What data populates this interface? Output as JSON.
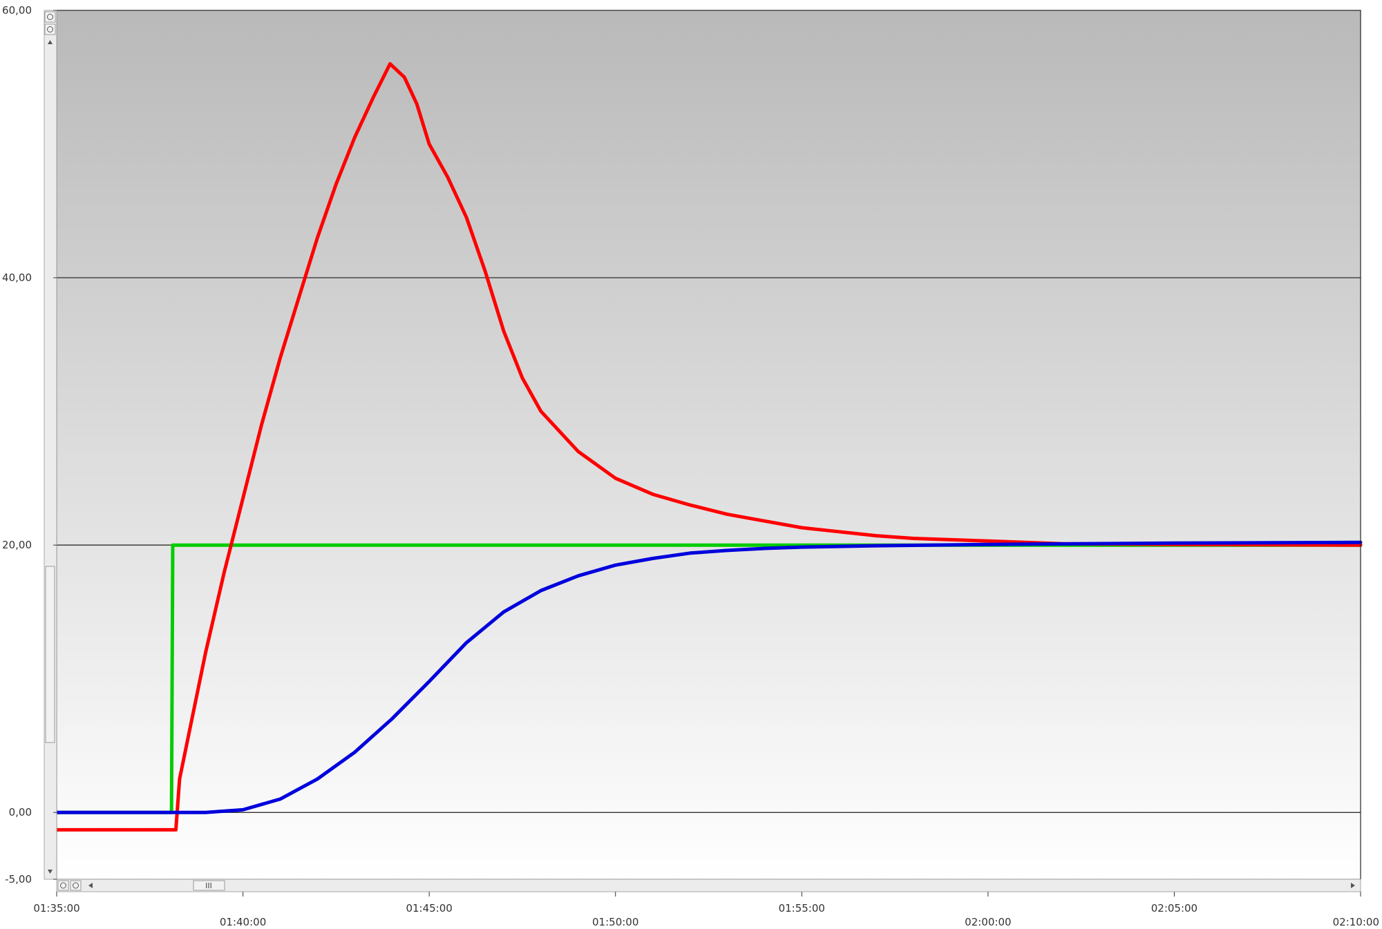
{
  "chart_data": {
    "type": "line",
    "title": "",
    "xlabel": "",
    "ylabel": "",
    "ylim": [
      -5,
      60
    ],
    "xlim_minutes": [
      0,
      35
    ],
    "y_ticks": [
      {
        "value": 60,
        "label": "60,00"
      },
      {
        "value": 40,
        "label": "40,00"
      },
      {
        "value": 20,
        "label": "20,00"
      },
      {
        "value": 0,
        "label": "0,00"
      },
      {
        "value": -5,
        "label": "-5,00"
      }
    ],
    "x_ticks": [
      {
        "value": "01:35:00",
        "label": "01:35:00"
      },
      {
        "value": "01:40:00",
        "label": "01:40:00"
      },
      {
        "value": "01:45:00",
        "label": "01:45:00"
      },
      {
        "value": "01:50:00",
        "label": "01:50:00"
      },
      {
        "value": "01:55:00",
        "label": "01:55:00"
      },
      {
        "value": "02:00:00",
        "label": "02:00:00"
      },
      {
        "value": "02:05:00",
        "label": "02:05:00"
      },
      {
        "value": "02:10:00",
        "label": "02:10:00"
      }
    ],
    "grid": {
      "horizontal_at": [
        40,
        20,
        0
      ]
    },
    "background": {
      "top": "#b9b9b9",
      "bottom": "#ffffff"
    },
    "series": [
      {
        "color": "#00cc00",
        "points": [
          [
            "01:35:00",
            0
          ],
          [
            "01:38:05",
            0
          ],
          [
            "01:38:07",
            20
          ],
          [
            "02:10:00",
            20
          ]
        ]
      },
      {
        "color": "#ff0000",
        "points": [
          [
            "01:35:00",
            -1.3
          ],
          [
            "01:38:12",
            -1.3
          ],
          [
            "01:38:18",
            2.5
          ],
          [
            "01:39:00",
            12
          ],
          [
            "01:39:30",
            18
          ],
          [
            "01:40:00",
            23.5
          ],
          [
            "01:40:30",
            29
          ],
          [
            "01:41:00",
            34
          ],
          [
            "01:41:30",
            38.5
          ],
          [
            "01:42:00",
            43
          ],
          [
            "01:42:30",
            47
          ],
          [
            "01:43:00",
            50.5
          ],
          [
            "01:43:30",
            53.5
          ],
          [
            "01:43:57",
            56
          ],
          [
            "01:44:20",
            55
          ],
          [
            "01:44:40",
            53
          ],
          [
            "01:45:00",
            50
          ],
          [
            "01:45:30",
            47.5
          ],
          [
            "01:46:00",
            44.5
          ],
          [
            "01:46:30",
            40.5
          ],
          [
            "01:47:00",
            36
          ],
          [
            "01:47:30",
            32.5
          ],
          [
            "01:48:00",
            30
          ],
          [
            "01:49:00",
            27
          ],
          [
            "01:50:00",
            25
          ],
          [
            "01:51:00",
            23.8
          ],
          [
            "01:52:00",
            23
          ],
          [
            "01:53:00",
            22.3
          ],
          [
            "01:54:00",
            21.8
          ],
          [
            "01:55:00",
            21.3
          ],
          [
            "01:56:00",
            21
          ],
          [
            "01:57:00",
            20.7
          ],
          [
            "01:58:00",
            20.5
          ],
          [
            "02:00:00",
            20.3
          ],
          [
            "02:02:00",
            20.1
          ],
          [
            "02:05:00",
            20.05
          ],
          [
            "02:10:00",
            20
          ]
        ]
      },
      {
        "color": "#0000dd",
        "points": [
          [
            "01:35:00",
            0
          ],
          [
            "01:39:00",
            0
          ],
          [
            "01:40:00",
            0.2
          ],
          [
            "01:41:00",
            1
          ],
          [
            "01:42:00",
            2.5
          ],
          [
            "01:43:00",
            4.5
          ],
          [
            "01:44:00",
            7
          ],
          [
            "01:45:00",
            9.8
          ],
          [
            "01:46:00",
            12.7
          ],
          [
            "01:47:00",
            15
          ],
          [
            "01:48:00",
            16.6
          ],
          [
            "01:49:00",
            17.7
          ],
          [
            "01:50:00",
            18.5
          ],
          [
            "01:51:00",
            19
          ],
          [
            "01:52:00",
            19.4
          ],
          [
            "01:53:00",
            19.6
          ],
          [
            "01:54:00",
            19.75
          ],
          [
            "01:55:00",
            19.85
          ],
          [
            "01:57:00",
            19.95
          ],
          [
            "02:00:00",
            20.05
          ],
          [
            "02:05:00",
            20.15
          ],
          [
            "02:10:00",
            20.2
          ]
        ]
      }
    ]
  },
  "controls": {
    "scroll_thumb_glyph": "III"
  }
}
